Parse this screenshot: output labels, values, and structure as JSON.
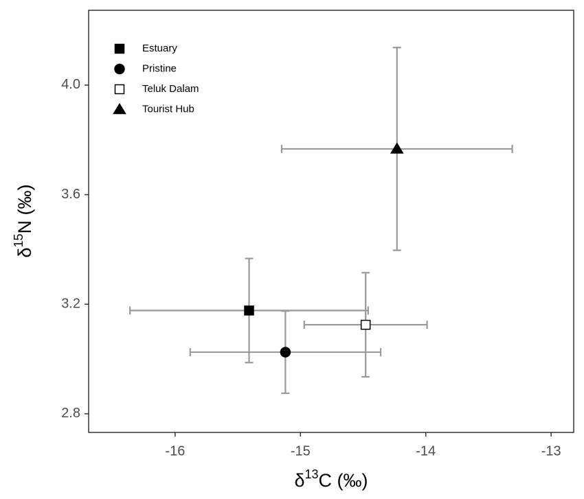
{
  "chart_data": {
    "type": "scatter",
    "xlabel": {
      "symbol": "δ",
      "sup": "13",
      "rest": "C (‰)"
    },
    "ylabel": {
      "symbol": "δ",
      "sup": "15",
      "rest": "N (‰)"
    },
    "xlim": [
      -16.69,
      -12.82
    ],
    "ylim": [
      2.732,
      4.273
    ],
    "xticks": [
      -16,
      -15,
      -14,
      -13
    ],
    "yticks": [
      {
        "value": 2.8,
        "label": "2.8"
      },
      {
        "value": 3.2,
        "label": "3.2"
      },
      3.6,
      {
        "value": 4.0,
        "label": "4.0"
      }
    ],
    "grid": false,
    "legend": "top-left",
    "error_color": "#999999",
    "series": [
      {
        "name": "Estuary",
        "marker": "square",
        "color": "#000000",
        "fill": "#000000",
        "x": [
          -15.41
        ],
        "values": [
          3.177
        ],
        "xerr": [
          0.95
        ],
        "yerr": [
          0.19
        ]
      },
      {
        "name": "Pristine",
        "marker": "circle",
        "color": "#000000",
        "fill": "#000000",
        "x": [
          -15.12
        ],
        "values": [
          3.025
        ],
        "xerr": [
          0.76
        ],
        "yerr": [
          0.15
        ]
      },
      {
        "name": "Teluk Dalam",
        "marker": "square",
        "color": "#000000",
        "fill": "#ffffff",
        "x": [
          -14.48
        ],
        "values": [
          3.125
        ],
        "xerr": [
          0.49
        ],
        "yerr": [
          0.19
        ]
      },
      {
        "name": "Tourist Hub",
        "marker": "triangle",
        "color": "#000000",
        "fill": "#000000",
        "x": [
          -14.23
        ],
        "values": [
          3.767
        ],
        "xerr": [
          0.92
        ],
        "yerr": [
          0.37
        ]
      }
    ]
  }
}
